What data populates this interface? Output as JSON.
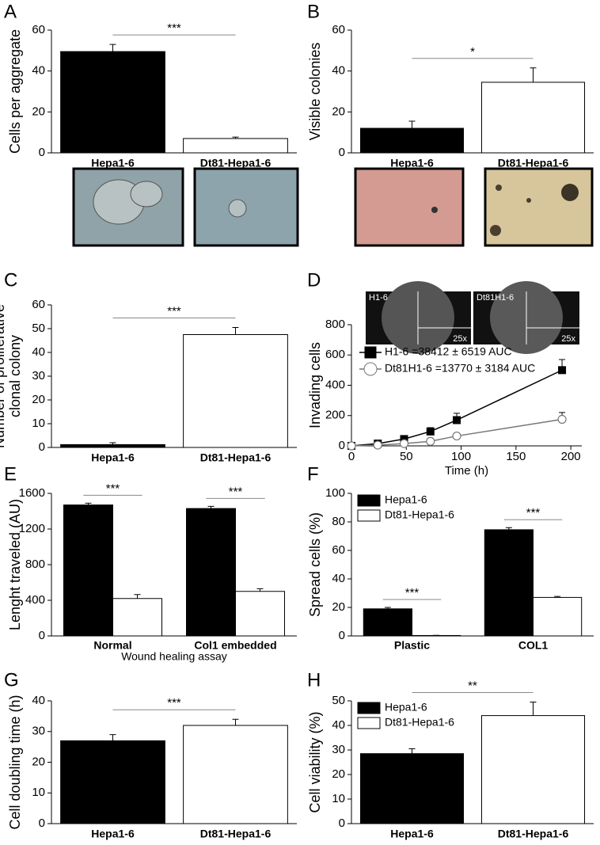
{
  "chart_data": [
    {
      "type": "bar",
      "panel": "A",
      "ylabel": "Cells per aggregate",
      "categories": [
        "Hepa1-6",
        "Dt81-Hepa1-6"
      ],
      "values": [
        49.5,
        7
      ],
      "errors": [
        3.5,
        0.7
      ],
      "colors": [
        "#000000",
        "#ffffff"
      ],
      "ylim": [
        0,
        60
      ],
      "yticks": [
        0,
        20,
        40,
        60
      ],
      "significance": "***"
    },
    {
      "type": "bar",
      "panel": "B",
      "ylabel": "Visible colonies",
      "categories": [
        "Hepa1-6",
        "Dt81-Hepa1-6"
      ],
      "values": [
        12,
        34.5
      ],
      "errors": [
        3.5,
        7
      ],
      "colors": [
        "#000000",
        "#ffffff"
      ],
      "ylim": [
        0,
        60
      ],
      "yticks": [
        0,
        20,
        40,
        60
      ],
      "significance": "*"
    },
    {
      "type": "bar",
      "panel": "C",
      "ylabel": [
        "Number of proliferative",
        "clonal colony"
      ],
      "categories": [
        "Hepa1-6",
        "Dt81-Hepa1-6"
      ],
      "values": [
        1.2,
        47.5
      ],
      "errors": [
        0.8,
        3
      ],
      "colors": [
        "#000000",
        "#ffffff"
      ],
      "ylim": [
        0,
        60
      ],
      "yticks": [
        0,
        10,
        20,
        30,
        40,
        50,
        60
      ],
      "significance": "***"
    },
    {
      "type": "line",
      "panel": "D",
      "ylabel": "Invading cells",
      "xlabel": "Time (h)",
      "x": [
        0,
        24,
        48,
        72,
        96,
        192
      ],
      "xlim": [
        0,
        210
      ],
      "xticks": [
        0,
        50,
        100,
        150,
        200
      ],
      "ylim": [
        0,
        800
      ],
      "yticks": [
        0,
        200,
        400,
        600,
        800
      ],
      "inset_labels": [
        "H1-6",
        "25x",
        "Dt81H1-6",
        "25x"
      ],
      "legend": "upper left",
      "series": [
        {
          "name": "H1-6 =38412 ± 6519 AUC",
          "color": "#000000",
          "marker": "square",
          "marker_fill": "#000000",
          "values": [
            0,
            15,
            45,
            95,
            170,
            500
          ],
          "errors": [
            5,
            10,
            10,
            25,
            45,
            70
          ]
        },
        {
          "name": "Dt81H1-6 =13770 ± 3184 AUC",
          "color": "#777777",
          "marker": "circle",
          "marker_fill": "#ffffff",
          "values": [
            0,
            5,
            15,
            30,
            65,
            175
          ],
          "errors": [
            3,
            5,
            5,
            10,
            15,
            45
          ]
        }
      ]
    },
    {
      "type": "grouped-bar",
      "panel": "E",
      "ylabel": "Lenght traveled (AU)",
      "xlabel": "Wound healing assay",
      "categories": [
        "Normal",
        "Col1 embedded"
      ],
      "ylim": [
        0,
        1600
      ],
      "yticks": [
        0,
        400,
        800,
        1200,
        1600
      ],
      "significance": [
        "***",
        "***"
      ],
      "series": [
        {
          "name": "Hepa1-6",
          "color": "#000000",
          "values": [
            1470,
            1430
          ],
          "errors": [
            20,
            25
          ]
        },
        {
          "name": "Dt81-Hepa1-6",
          "color": "#ffffff",
          "values": [
            420,
            500
          ],
          "errors": [
            45,
            30
          ]
        }
      ]
    },
    {
      "type": "grouped-bar",
      "panel": "F",
      "ylabel": "Spread cells (%)",
      "categories": [
        "Plastic",
        "COL1"
      ],
      "ylim": [
        0,
        100
      ],
      "yticks": [
        0,
        20,
        40,
        60,
        80,
        100
      ],
      "significance": [
        "***",
        "***"
      ],
      "legend": "upper left",
      "series": [
        {
          "name": "Hepa1-6",
          "color": "#000000",
          "values": [
            19,
            74.5
          ],
          "errors": [
            1,
            1.5
          ]
        },
        {
          "name": "Dt81-Hepa1-6",
          "color": "#ffffff",
          "values": [
            0.3,
            27
          ],
          "errors": [
            0.1,
            0.7
          ]
        }
      ]
    },
    {
      "type": "bar",
      "panel": "G",
      "ylabel": "Cell doubling time (h)",
      "categories": [
        "Hepa1-6",
        "Dt81-Hepa1-6"
      ],
      "values": [
        27,
        32
      ],
      "errors": [
        2,
        2
      ],
      "colors": [
        "#000000",
        "#ffffff"
      ],
      "ylim": [
        0,
        40
      ],
      "yticks": [
        0,
        10,
        20,
        30,
        40
      ],
      "significance": "***"
    },
    {
      "type": "bar",
      "panel": "H",
      "ylabel": "Cell viability (%)",
      "categories": [
        "Hepa1-6",
        "Dt81-Hepa1-6"
      ],
      "values": [
        28.5,
        44
      ],
      "errors": [
        2,
        5.5
      ],
      "colors": [
        "#000000",
        "#ffffff"
      ],
      "ylim": [
        0,
        50
      ],
      "yticks": [
        0,
        10,
        20,
        30,
        40,
        50
      ],
      "significance": "**",
      "legend": "upper left",
      "legend_names": [
        "Hepa1-6",
        "Dt81-Hepa1-6"
      ]
    }
  ]
}
